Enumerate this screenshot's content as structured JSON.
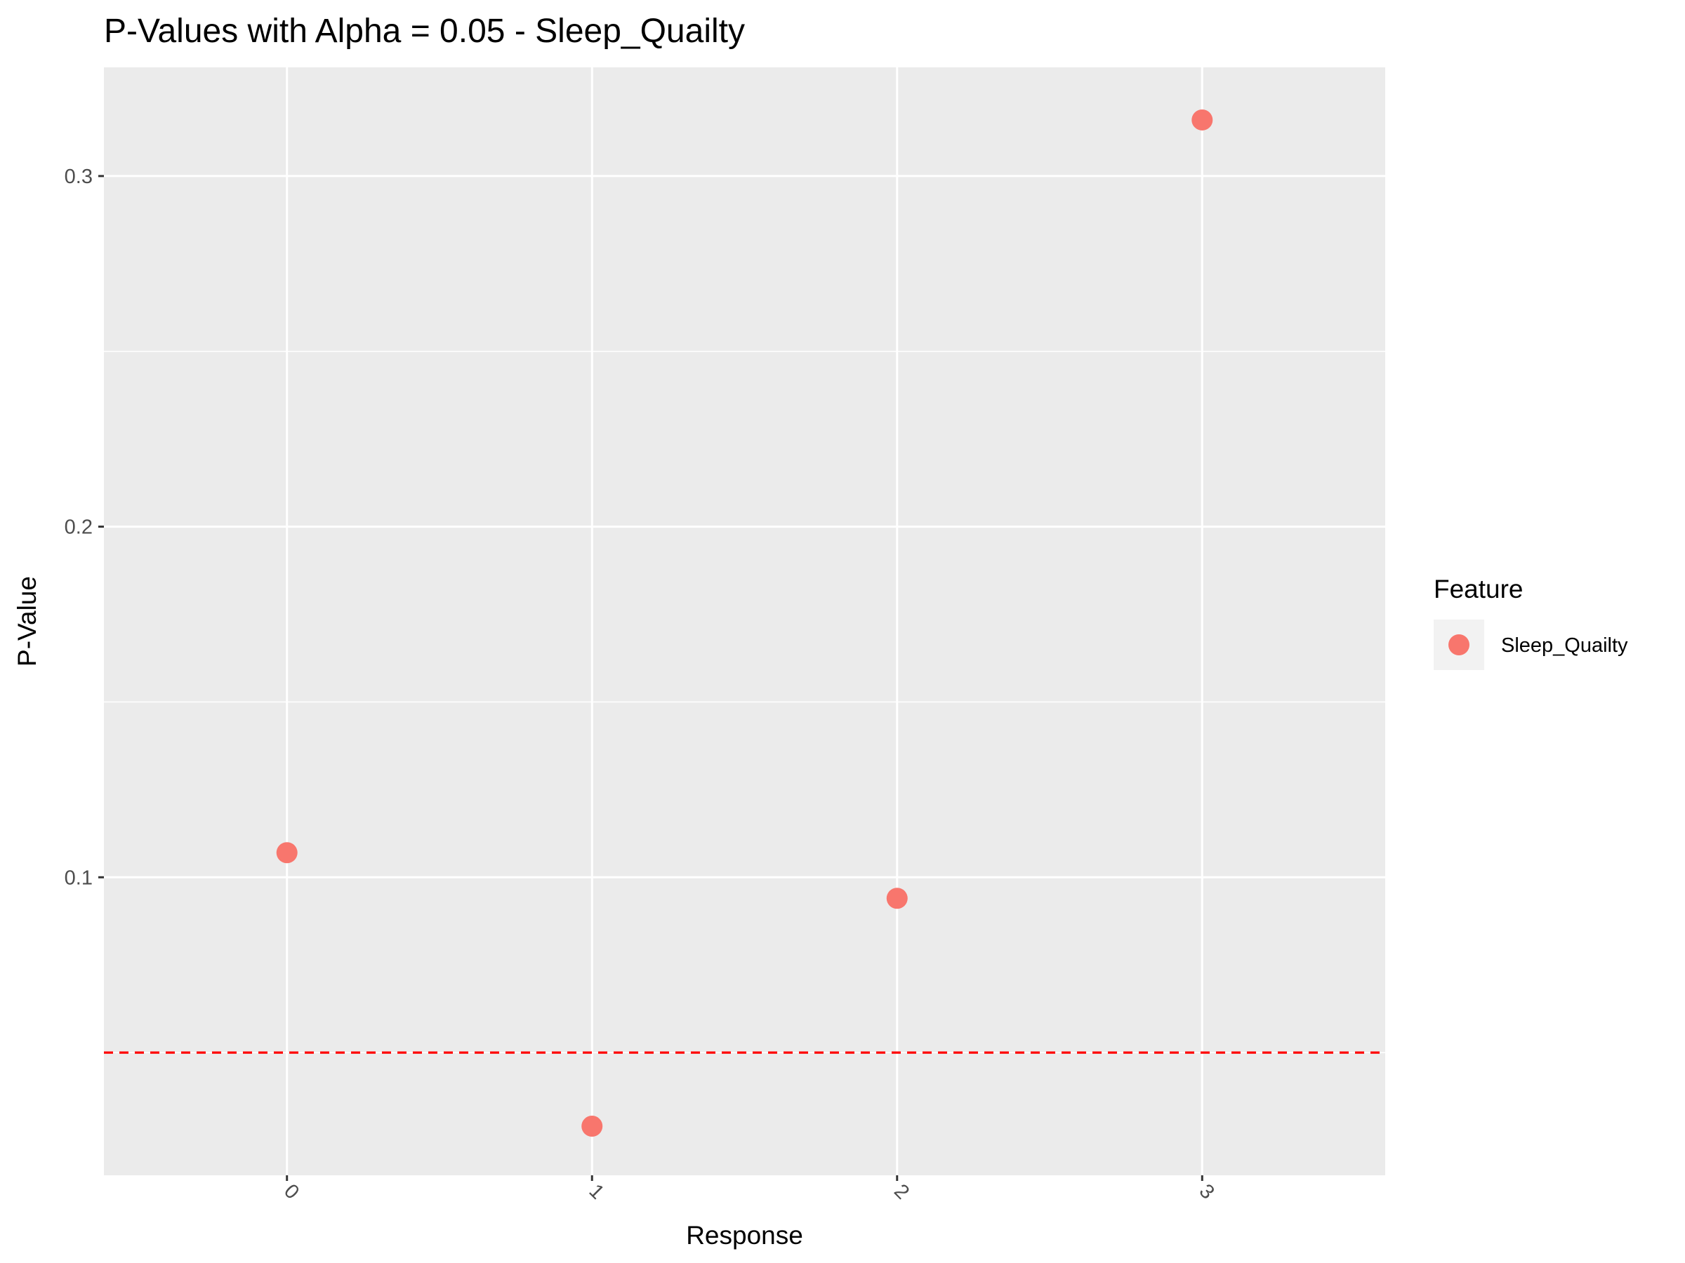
{
  "chart_data": {
    "type": "scatter",
    "title": "P-Values with Alpha = 0.05 - Sleep_Quailty",
    "xlabel": "Response",
    "ylabel": "P-Value",
    "x_categories": [
      "0",
      "1",
      "2",
      "3"
    ],
    "ylim": [
      0.015,
      0.331
    ],
    "y_ticks": [
      0.1,
      0.2,
      0.3
    ],
    "y_tick_labels": [
      "0.1",
      "0.2",
      "0.3"
    ],
    "grid": true,
    "series": [
      {
        "name": "Sleep_Quailty",
        "color": "#F8766D",
        "points": [
          {
            "x": "0",
            "y": 0.107
          },
          {
            "x": "1",
            "y": 0.029
          },
          {
            "x": "2",
            "y": 0.094
          },
          {
            "x": "3",
            "y": 0.316
          }
        ]
      }
    ],
    "reference_line": {
      "y": 0.05,
      "style": "dashed",
      "color": "#FF0000"
    },
    "legend": {
      "title": "Feature",
      "position": "right",
      "entries": [
        "Sleep_Quailty"
      ]
    },
    "panel_background": "#EBEBEB",
    "grid_color": "#FFFFFF",
    "x_tick_rotation": "45"
  }
}
